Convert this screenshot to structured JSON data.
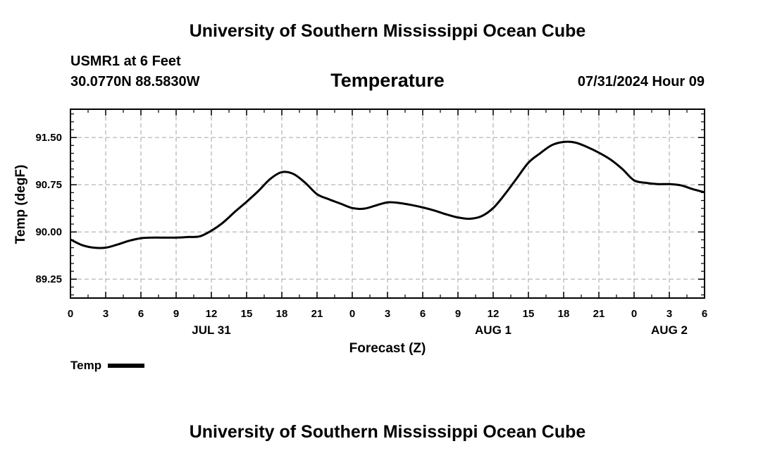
{
  "header": {
    "title": "University of Southern Mississippi Ocean Cube",
    "station": "USMR1 at 6 Feet",
    "coords": "30.0770N  88.5830W",
    "datetime": "07/31/2024 Hour 09"
  },
  "footer": {
    "title": "University of Southern Mississippi Ocean Cube"
  },
  "chart_data": {
    "type": "line",
    "title": "Temperature",
    "xlabel": "Forecast (Z)",
    "ylabel": "Temp (degF)",
    "xlim": [
      0,
      54
    ],
    "ylim": [
      88.95,
      91.95
    ],
    "grid": true,
    "x_ticks": [
      0,
      3,
      6,
      9,
      12,
      15,
      18,
      21,
      24,
      27,
      30,
      33,
      36,
      39,
      42,
      45,
      48,
      51,
      54
    ],
    "x_tick_labels": [
      "0",
      "3",
      "6",
      "9",
      "12",
      "15",
      "18",
      "21",
      "0",
      "3",
      "6",
      "9",
      "12",
      "15",
      "18",
      "21",
      "0",
      "3",
      "6"
    ],
    "y_ticks": [
      89.25,
      90.0,
      90.75,
      91.5
    ],
    "y_tick_labels": [
      "89.25",
      "90.00",
      "90.75",
      "91.50"
    ],
    "day_labels": [
      {
        "x": 12,
        "label": "JUL 31"
      },
      {
        "x": 36,
        "label": "AUG 1"
      },
      {
        "x": 51,
        "label": "AUG 2"
      }
    ],
    "series": [
      {
        "name": "Temp",
        "color": "#000000",
        "x": [
          0,
          1,
          2,
          3,
          4,
          5,
          6,
          7,
          8,
          9,
          10,
          11,
          12,
          13,
          14,
          15,
          16,
          17,
          18,
          19,
          20,
          21,
          22,
          23,
          24,
          25,
          26,
          27,
          28,
          29,
          30,
          31,
          32,
          33,
          34,
          35,
          36,
          37,
          38,
          39,
          40,
          41,
          42,
          43,
          44,
          45,
          46,
          47,
          48,
          49,
          50,
          51,
          52,
          53,
          54
        ],
        "values": [
          89.88,
          89.79,
          89.75,
          89.75,
          89.8,
          89.86,
          89.9,
          89.91,
          89.91,
          89.91,
          89.92,
          89.93,
          90.02,
          90.15,
          90.32,
          90.48,
          90.65,
          90.84,
          90.95,
          90.92,
          90.78,
          90.6,
          90.52,
          90.45,
          90.38,
          90.37,
          90.42,
          90.47,
          90.46,
          90.43,
          90.39,
          90.34,
          90.28,
          90.23,
          90.21,
          90.25,
          90.38,
          90.6,
          90.85,
          91.1,
          91.25,
          91.38,
          91.43,
          91.42,
          91.35,
          91.26,
          91.15,
          91.0,
          90.82,
          90.78,
          90.76,
          90.76,
          90.74,
          90.68,
          90.63
        ]
      }
    ],
    "legend": [
      {
        "label": "Temp"
      }
    ]
  }
}
